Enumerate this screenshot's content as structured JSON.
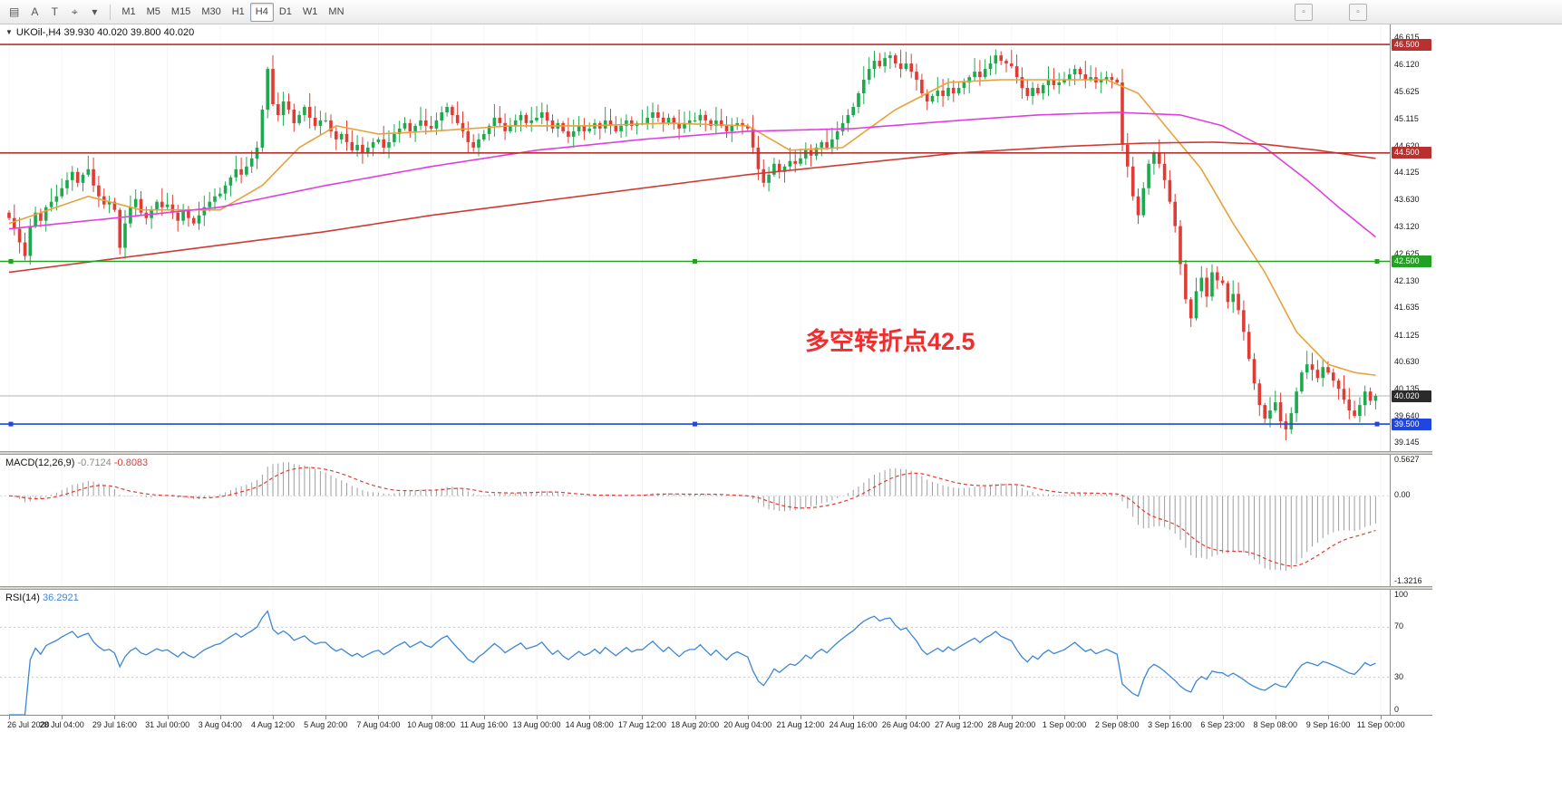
{
  "toolbar": {
    "left_buttons": [
      {
        "name": "chart-list-icon",
        "glyph": "▤"
      },
      {
        "name": "annotation-tool-button",
        "glyph": "A"
      },
      {
        "name": "text-tool-button",
        "glyph": "T"
      },
      {
        "name": "crosshair-tool-button",
        "glyph": "⌖"
      },
      {
        "name": "tool-dropdown-caret-icon",
        "glyph": "▾"
      }
    ],
    "timeframes": [
      "M1",
      "M5",
      "M15",
      "M30",
      "H1",
      "H4",
      "D1",
      "W1",
      "MN"
    ],
    "active_timeframe": "H4",
    "extra_buttons": [
      {
        "name": "toolbar-extra-button-1",
        "glyph": "▫"
      },
      {
        "name": "toolbar-extra-button-2",
        "glyph": "▫"
      }
    ]
  },
  "chart": {
    "symbol_label": "UKOil-,H4 39.930 40.020 39.800 40.020",
    "collapse_icon": "▼",
    "annotation": "多空转折点42.5"
  },
  "macd": {
    "name": "MACD(12,26,9)",
    "value_main": "-0.7124",
    "value_signal": "-0.8083",
    "axis": [
      {
        "text": "0.5627",
        "v": 0.5627
      },
      {
        "text": "0.00",
        "v": 0
      },
      {
        "text": "-1.3216",
        "v": -1.3216
      }
    ]
  },
  "rsi": {
    "name": "RSI(14)",
    "value": "36.2921",
    "axis": [
      {
        "text": "100",
        "v": 100
      },
      {
        "text": "70",
        "v": 70
      },
      {
        "text": "30",
        "v": 30
      },
      {
        "text": "0",
        "v": 0
      }
    ]
  },
  "time_axis": {
    "labels": [
      "26 Jul 2020",
      "28 Jul 04:00",
      "29 Jul 16:00",
      "31 Jul 00:00",
      "3 Aug 04:00",
      "4 Aug 12:00",
      "5 Aug 20:00",
      "7 Aug 04:00",
      "10 Aug 08:00",
      "11 Aug 16:00",
      "13 Aug 00:00",
      "14 Aug 08:00",
      "17 Aug 12:00",
      "18 Aug 20:00",
      "20 Aug 04:00",
      "21 Aug 12:00",
      "24 Aug 16:00",
      "26 Aug 04:00",
      "27 Aug 12:00",
      "28 Aug 20:00",
      "1 Sep 00:00",
      "2 Sep 08:00",
      "3 Sep 16:00",
      "6 Sep 23:00",
      "8 Sep 08:00",
      "9 Sep 16:00",
      "11 Sep 00:00"
    ]
  },
  "chart_data": {
    "type": "candlestick",
    "symbol": "UKOil-",
    "timeframe": "H4",
    "ohlc_current": {
      "open": 39.93,
      "high": 40.02,
      "low": 39.8,
      "close": 40.02
    },
    "price_max": 46.87,
    "price_min": 39.0,
    "x_step": 5.82,
    "first_open": 43.4,
    "closes": [
      43.3,
      43.1,
      42.85,
      42.6,
      43.15,
      43.4,
      43.25,
      43.5,
      43.6,
      43.7,
      43.85,
      44.0,
      44.15,
      43.95,
      44.1,
      44.2,
      43.9,
      43.7,
      43.55,
      43.6,
      43.45,
      42.75,
      43.2,
      43.5,
      43.65,
      43.4,
      43.3,
      43.45,
      43.6,
      43.5,
      43.55,
      43.4,
      43.25,
      43.45,
      43.3,
      43.2,
      43.35,
      43.5,
      43.6,
      43.7,
      43.75,
      43.9,
      44.05,
      44.2,
      44.1,
      44.25,
      44.4,
      44.6,
      45.3,
      46.05,
      45.4,
      45.2,
      45.45,
      45.3,
      45.05,
      45.2,
      45.35,
      45.15,
      45.0,
      45.1,
      45.1,
      44.9,
      44.75,
      44.85,
      44.7,
      44.55,
      44.65,
      44.5,
      44.6,
      44.7,
      44.75,
      44.6,
      44.7,
      44.85,
      44.95,
      45.05,
      44.9,
      45.0,
      45.1,
      45.0,
      44.95,
      45.1,
      45.25,
      45.35,
      45.2,
      45.05,
      44.9,
      44.7,
      44.6,
      44.75,
      44.85,
      45.0,
      45.15,
      45.05,
      44.9,
      45.0,
      45.1,
      45.2,
      45.05,
      45.1,
      45.15,
      45.25,
      45.1,
      44.95,
      45.05,
      44.9,
      44.8,
      44.9,
      45.0,
      44.9,
      44.95,
      45.05,
      44.95,
      45.1,
      45.0,
      44.9,
      45.0,
      45.1,
      45.0,
      45.05,
      45.05,
      45.15,
      45.25,
      45.15,
      45.05,
      45.15,
      45.05,
      44.95,
      45.05,
      45.1,
      45.1,
      45.2,
      45.1,
      45.0,
      45.1,
      45.0,
      44.9,
      45.0,
      45.05,
      45.0,
      44.95,
      44.6,
      44.2,
      43.95,
      44.1,
      44.3,
      44.15,
      44.25,
      44.35,
      44.3,
      44.4,
      44.55,
      44.45,
      44.6,
      44.7,
      44.6,
      44.75,
      44.9,
      45.05,
      45.2,
      45.35,
      45.6,
      45.85,
      46.05,
      46.2,
      46.1,
      46.25,
      46.3,
      46.15,
      46.05,
      46.15,
      46.0,
      45.85,
      45.6,
      45.45,
      45.55,
      45.65,
      45.55,
      45.7,
      45.6,
      45.7,
      45.8,
      45.9,
      46.0,
      45.9,
      46.05,
      46.15,
      46.3,
      46.2,
      46.15,
      46.1,
      45.9,
      45.7,
      45.55,
      45.7,
      45.6,
      45.75,
      45.85,
      45.75,
      45.8,
      45.85,
      45.95,
      46.05,
      45.95,
      45.85,
      45.9,
      45.8,
      45.85,
      45.9,
      45.85,
      45.8,
      44.65,
      44.25,
      43.7,
      43.35,
      43.85,
      44.3,
      44.5,
      44.3,
      44.0,
      43.6,
      43.15,
      42.45,
      41.8,
      41.45,
      41.95,
      42.2,
      41.85,
      42.3,
      42.15,
      42.1,
      41.75,
      41.9,
      41.6,
      41.2,
      40.7,
      40.25,
      39.85,
      39.6,
      39.75,
      39.9,
      39.55,
      39.4,
      39.7,
      40.1,
      40.45,
      40.6,
      40.5,
      40.35,
      40.55,
      40.45,
      40.3,
      40.15,
      39.95,
      39.75,
      39.65,
      39.85,
      40.1,
      39.93,
      40.02
    ],
    "price_axis_labels": [
      {
        "text": "46.615",
        "v": 46.615
      },
      {
        "text": "46.120",
        "v": 46.12
      },
      {
        "text": "45.625",
        "v": 45.625
      },
      {
        "text": "45.115",
        "v": 45.115
      },
      {
        "text": "44.620",
        "v": 44.62
      },
      {
        "text": "44.125",
        "v": 44.125
      },
      {
        "text": "43.630",
        "v": 43.63
      },
      {
        "text": "43.120",
        "v": 43.12
      },
      {
        "text": "42.625",
        "v": 42.625
      },
      {
        "text": "42.130",
        "v": 42.13
      },
      {
        "text": "41.635",
        "v": 41.635
      },
      {
        "text": "41.125",
        "v": 41.125
      },
      {
        "text": "40.630",
        "v": 40.63
      },
      {
        "text": "40.135",
        "v": 40.135
      },
      {
        "text": "39.640",
        "v": 39.64
      },
      {
        "text": "39.145",
        "v": 39.145
      }
    ],
    "hlines": [
      {
        "price": 46.5,
        "color": "#b8312f",
        "badge": "46.500",
        "handles": false
      },
      {
        "price": 44.5,
        "color": "#b8312f",
        "badge": "44.500",
        "handles": false
      },
      {
        "price": 42.5,
        "color": "#23a123",
        "badge": "42.500",
        "handles": true
      },
      {
        "price": 39.5,
        "color": "#1f46e0",
        "badge": "39.500",
        "handles": true
      }
    ],
    "current_price": {
      "text": "40.020",
      "v": 40.02,
      "badge_color": "#2b2b2b",
      "line_color": "#b4b4b4"
    },
    "moving_averages": [
      {
        "name": "ma-fast",
        "color": "#e8a23c",
        "points": [
          [
            0,
            43.2
          ],
          [
            15,
            43.7
          ],
          [
            25,
            43.45
          ],
          [
            40,
            43.45
          ],
          [
            48,
            43.9
          ],
          [
            55,
            44.6
          ],
          [
            62,
            45.0
          ],
          [
            70,
            44.85
          ],
          [
            80,
            44.9
          ],
          [
            95,
            45.0
          ],
          [
            110,
            45.0
          ],
          [
            125,
            45.05
          ],
          [
            140,
            45.0
          ],
          [
            148,
            44.55
          ],
          [
            158,
            44.6
          ],
          [
            168,
            45.3
          ],
          [
            178,
            45.8
          ],
          [
            188,
            45.85
          ],
          [
            198,
            45.85
          ],
          [
            208,
            45.85
          ],
          [
            214,
            45.6
          ],
          [
            220,
            44.9
          ],
          [
            226,
            44.2
          ],
          [
            232,
            43.2
          ],
          [
            238,
            42.3
          ],
          [
            244,
            41.2
          ],
          [
            250,
            40.6
          ],
          [
            255,
            40.45
          ],
          [
            259,
            40.4
          ]
        ]
      },
      {
        "name": "ma-mid",
        "color": "#df3fdf",
        "points": [
          [
            0,
            43.1
          ],
          [
            20,
            43.3
          ],
          [
            40,
            43.5
          ],
          [
            60,
            43.9
          ],
          [
            80,
            44.25
          ],
          [
            100,
            44.55
          ],
          [
            120,
            44.75
          ],
          [
            140,
            44.9
          ],
          [
            160,
            44.95
          ],
          [
            180,
            45.1
          ],
          [
            195,
            45.2
          ],
          [
            210,
            45.25
          ],
          [
            222,
            45.2
          ],
          [
            230,
            45.0
          ],
          [
            238,
            44.6
          ],
          [
            246,
            44.0
          ],
          [
            252,
            43.5
          ],
          [
            259,
            42.95
          ]
        ]
      },
      {
        "name": "ma-slow",
        "color": "#cf3b34",
        "points": [
          [
            0,
            42.3
          ],
          [
            20,
            42.55
          ],
          [
            40,
            42.8
          ],
          [
            60,
            43.05
          ],
          [
            80,
            43.35
          ],
          [
            100,
            43.6
          ],
          [
            120,
            43.85
          ],
          [
            140,
            44.1
          ],
          [
            160,
            44.3
          ],
          [
            180,
            44.5
          ],
          [
            200,
            44.62
          ],
          [
            215,
            44.68
          ],
          [
            228,
            44.7
          ],
          [
            238,
            44.66
          ],
          [
            248,
            44.55
          ],
          [
            259,
            44.4
          ]
        ]
      }
    ],
    "colors": {
      "up": "#1fa94e",
      "down": "#e23b34",
      "macd_hist": "#9e9e9e",
      "macd_signal": "#e23b34",
      "rsi": "#3c86d8"
    }
  }
}
